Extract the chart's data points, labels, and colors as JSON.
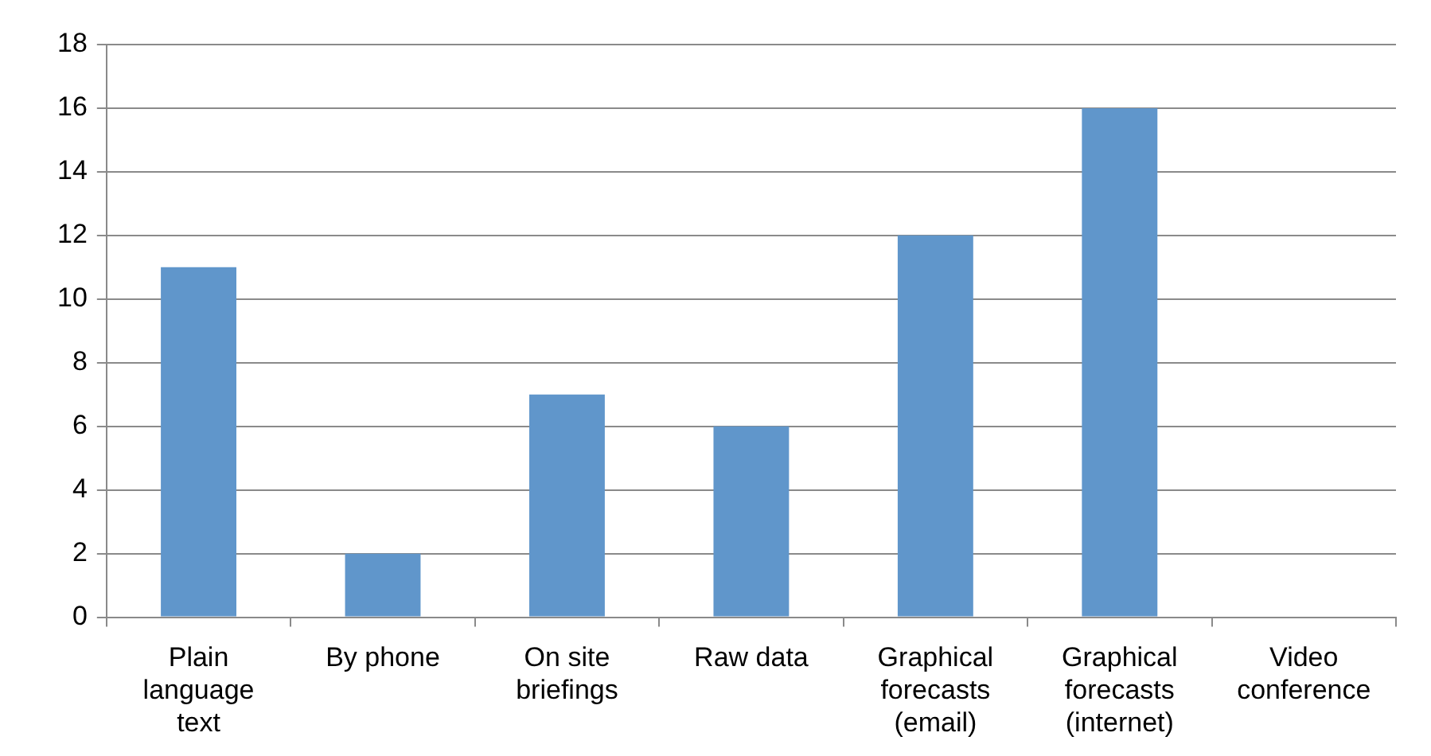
{
  "chart_data": {
    "type": "bar",
    "categories": [
      "Plain language text",
      "By phone",
      "On site briefings",
      "Raw data",
      "Graphical forecasts (email)",
      "Graphical forecasts (internet)",
      "Video conference"
    ],
    "values": [
      11,
      2,
      7,
      6,
      12,
      16,
      0
    ],
    "color": "#6096cb",
    "ylim": [
      0,
      18
    ],
    "yticks": [
      0,
      2,
      4,
      6,
      8,
      10,
      12,
      14,
      16,
      18
    ],
    "grid": "y",
    "legend": false
  }
}
